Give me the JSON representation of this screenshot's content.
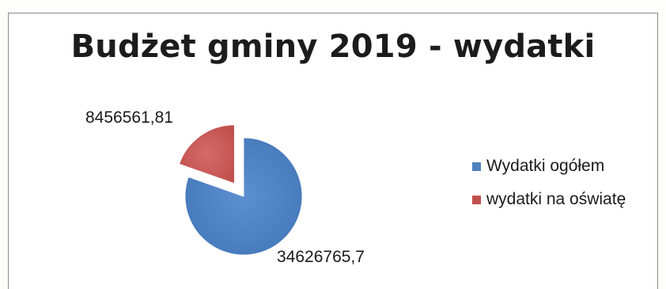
{
  "chart_data": {
    "type": "pie",
    "title": "Budżet gminy 2019 - wydatki",
    "slices": [
      {
        "label": "Wydatki ogółem",
        "value": 34626765.7,
        "value_label": "34626765,7",
        "color": "#4f81bd"
      },
      {
        "label": "wydatki na oświatę",
        "value": 8456561.81,
        "value_label": "8456561,81",
        "color": "#c0504d"
      }
    ],
    "exploded": "wydatki na oświatę",
    "legend_position": "right"
  }
}
